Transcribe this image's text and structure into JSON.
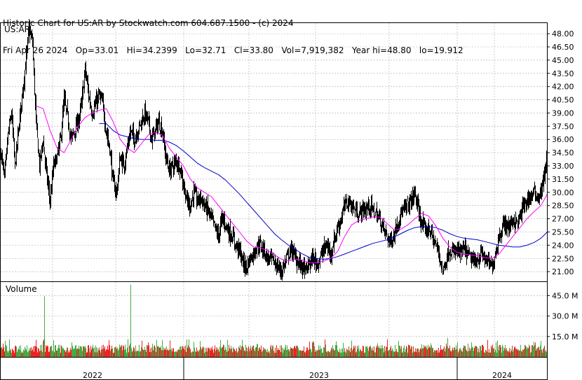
{
  "header": {
    "line1": "Historic Chart for US:AR by Stockwatch.com 604.687.1500 - (c) 2024",
    "line2": "Fri Apr 26 2024   Op=33.01   Hi=34.2399   Lo=32.71   Cl=33.80   Vol=7,919,382   Year hi=48.80   lo=19.912"
  },
  "chart_data": [
    {
      "type": "line",
      "panel": "price",
      "title": "US:AR",
      "y_ticks": [
        "48.00",
        "46.50",
        "45.00",
        "43.50",
        "42.00",
        "40.50",
        "39.00",
        "37.50",
        "36.00",
        "34.50",
        "33.00",
        "31.50",
        "30.00",
        "28.50",
        "27.00",
        "25.50",
        "24.00",
        "22.50",
        "21.00"
      ],
      "ylim": [
        19.9,
        49.2
      ],
      "x_labels": [
        "2022",
        "2023",
        "2024"
      ],
      "series": [
        {
          "style": "ohlc-bars",
          "color": "#000000"
        },
        {
          "style": "moving-average-short",
          "color": "#ff00ff"
        },
        {
          "style": "moving-average-long",
          "color": "#0000cc"
        }
      ],
      "price_keypoints": [
        [
          0,
          34.5
        ],
        [
          5,
          31.5
        ],
        [
          10,
          36.5
        ],
        [
          15,
          39
        ],
        [
          20,
          33
        ],
        [
          25,
          37
        ],
        [
          30,
          41
        ],
        [
          35,
          44.5
        ],
        [
          40,
          48.5
        ],
        [
          45,
          47
        ],
        [
          50,
          38
        ],
        [
          55,
          33
        ],
        [
          60,
          36
        ],
        [
          65,
          32
        ],
        [
          70,
          29
        ],
        [
          75,
          33
        ],
        [
          80,
          34
        ],
        [
          85,
          36
        ],
        [
          90,
          40.5
        ],
        [
          95,
          38.5
        ],
        [
          100,
          36
        ],
        [
          105,
          37
        ],
        [
          110,
          38
        ],
        [
          115,
          40
        ],
        [
          120,
          44
        ],
        [
          125,
          41
        ],
        [
          130,
          39
        ],
        [
          135,
          40
        ],
        [
          140,
          41
        ],
        [
          145,
          40
        ],
        [
          150,
          37
        ],
        [
          155,
          35
        ],
        [
          160,
          31
        ],
        [
          165,
          30
        ],
        [
          170,
          34
        ],
        [
          175,
          33
        ],
        [
          180,
          35
        ],
        [
          185,
          37
        ],
        [
          190,
          36
        ],
        [
          195,
          37
        ],
        [
          200,
          38
        ],
        [
          205,
          39
        ],
        [
          210,
          38
        ],
        [
          215,
          36
        ],
        [
          220,
          37
        ],
        [
          225,
          38
        ],
        [
          230,
          37
        ],
        [
          235,
          34
        ],
        [
          240,
          32.5
        ],
        [
          245,
          33
        ],
        [
          250,
          33.5
        ],
        [
          255,
          33
        ],
        [
          260,
          31
        ],
        [
          265,
          29
        ],
        [
          270,
          28.5
        ],
        [
          275,
          30
        ],
        [
          280,
          29
        ],
        [
          285,
          29.5
        ],
        [
          290,
          28.5
        ],
        [
          295,
          28
        ],
        [
          300,
          27
        ],
        [
          305,
          26
        ],
        [
          310,
          25
        ],
        [
          315,
          27
        ],
        [
          320,
          26.5
        ],
        [
          325,
          25.5
        ],
        [
          330,
          25
        ],
        [
          335,
          24
        ],
        [
          340,
          23.5
        ],
        [
          345,
          22
        ],
        [
          350,
          21.5
        ],
        [
          355,
          22.5
        ],
        [
          360,
          23
        ],
        [
          365,
          24
        ],
        [
          370,
          24
        ],
        [
          375,
          23.5
        ],
        [
          380,
          22.5
        ],
        [
          385,
          22.5
        ],
        [
          390,
          22
        ],
        [
          395,
          21.5
        ],
        [
          400,
          21
        ],
        [
          405,
          22
        ],
        [
          410,
          23
        ],
        [
          415,
          23.5
        ],
        [
          420,
          22.5
        ],
        [
          425,
          22
        ],
        [
          430,
          21.5
        ],
        [
          435,
          21
        ],
        [
          440,
          22
        ],
        [
          445,
          22.5
        ],
        [
          450,
          22
        ],
        [
          455,
          22.5
        ],
        [
          460,
          23.5
        ],
        [
          465,
          24
        ],
        [
          470,
          23
        ],
        [
          475,
          24.5
        ],
        [
          480,
          26
        ],
        [
          485,
          27
        ],
        [
          490,
          28.5
        ],
        [
          495,
          29
        ],
        [
          500,
          28.5
        ],
        [
          505,
          28
        ],
        [
          510,
          27.5
        ],
        [
          515,
          28
        ],
        [
          520,
          28
        ],
        [
          525,
          28.5
        ],
        [
          530,
          28
        ],
        [
          535,
          27.5
        ],
        [
          540,
          27
        ],
        [
          545,
          26
        ],
        [
          550,
          25
        ],
        [
          555,
          24.5
        ],
        [
          560,
          25
        ],
        [
          565,
          26.5
        ],
        [
          570,
          27.5
        ],
        [
          575,
          28
        ],
        [
          580,
          28.5
        ],
        [
          585,
          29
        ],
        [
          590,
          30
        ],
        [
          595,
          28
        ],
        [
          600,
          26.5
        ],
        [
          605,
          25.5
        ],
        [
          610,
          26
        ],
        [
          615,
          25
        ],
        [
          620,
          24
        ],
        [
          625,
          23
        ],
        [
          630,
          21
        ],
        [
          635,
          22.5
        ],
        [
          640,
          23.5
        ],
        [
          645,
          23
        ],
        [
          650,
          23.5
        ],
        [
          655,
          23
        ],
        [
          660,
          23.5
        ],
        [
          665,
          23
        ],
        [
          670,
          22.5
        ],
        [
          675,
          22
        ],
        [
          680,
          22.5
        ],
        [
          685,
          23
        ],
        [
          690,
          22.5
        ],
        [
          695,
          22
        ],
        [
          700,
          21.5
        ],
        [
          705,
          23
        ],
        [
          710,
          25
        ],
        [
          715,
          26
        ],
        [
          720,
          26.5
        ],
        [
          725,
          26
        ],
        [
          730,
          27
        ],
        [
          735,
          26.5
        ],
        [
          740,
          27
        ],
        [
          745,
          28.5
        ],
        [
          750,
          29
        ],
        [
          755,
          29.5
        ],
        [
          760,
          30
        ],
        [
          765,
          29.5
        ],
        [
          770,
          30
        ],
        [
          775,
          32
        ],
        [
          779,
          34
        ]
      ],
      "ma_short_keypoints": [
        [
          50,
          39.8
        ],
        [
          60,
          39.5
        ],
        [
          70,
          37
        ],
        [
          80,
          35
        ],
        [
          90,
          34.5
        ],
        [
          100,
          36
        ],
        [
          110,
          37.5
        ],
        [
          120,
          38.5
        ],
        [
          130,
          39
        ],
        [
          140,
          39.3
        ],
        [
          150,
          39.5
        ],
        [
          160,
          38
        ],
        [
          170,
          36
        ],
        [
          180,
          35
        ],
        [
          190,
          34.5
        ],
        [
          200,
          35.5
        ],
        [
          210,
          36.5
        ],
        [
          220,
          36.8
        ],
        [
          230,
          36.5
        ],
        [
          240,
          35
        ],
        [
          250,
          34
        ],
        [
          260,
          33
        ],
        [
          270,
          31.5
        ],
        [
          280,
          30.5
        ],
        [
          290,
          30
        ],
        [
          300,
          29.5
        ],
        [
          310,
          28.5
        ],
        [
          320,
          27.5
        ],
        [
          330,
          26.5
        ],
        [
          340,
          25.5
        ],
        [
          350,
          24.5
        ],
        [
          360,
          23.8
        ],
        [
          370,
          23.7
        ],
        [
          380,
          23.4
        ],
        [
          390,
          22.9
        ],
        [
          400,
          22.4
        ],
        [
          410,
          22.2
        ],
        [
          420,
          22.4
        ],
        [
          430,
          22.3
        ],
        [
          440,
          22
        ],
        [
          450,
          22
        ],
        [
          460,
          22.2
        ],
        [
          470,
          22.5
        ],
        [
          480,
          23.3
        ],
        [
          490,
          25
        ],
        [
          500,
          26.3
        ],
        [
          510,
          26.8
        ],
        [
          520,
          27
        ],
        [
          530,
          27.2
        ],
        [
          540,
          27.2
        ],
        [
          550,
          26.5
        ],
        [
          560,
          25.8
        ],
        [
          570,
          25.8
        ],
        [
          580,
          26.3
        ],
        [
          590,
          27
        ],
        [
          600,
          27.6
        ],
        [
          610,
          27.3
        ],
        [
          620,
          26.2
        ],
        [
          630,
          24.8
        ],
        [
          640,
          23.8
        ],
        [
          650,
          23.2
        ],
        [
          660,
          23
        ],
        [
          670,
          22.9
        ],
        [
          680,
          22.8
        ],
        [
          690,
          22.6
        ],
        [
          700,
          22.5
        ],
        [
          710,
          23
        ],
        [
          720,
          24
        ],
        [
          730,
          25
        ],
        [
          740,
          26
        ],
        [
          750,
          27
        ],
        [
          760,
          27.8
        ],
        [
          770,
          28.5
        ],
        [
          779,
          29.8
        ]
      ],
      "ma_long_keypoints": [
        [
          140,
          37.8
        ],
        [
          150,
          37.8
        ],
        [
          160,
          37
        ],
        [
          170,
          36.5
        ],
        [
          180,
          36.3
        ],
        [
          190,
          36.1
        ],
        [
          200,
          36
        ],
        [
          210,
          36
        ],
        [
          220,
          35.9
        ],
        [
          230,
          35.9
        ],
        [
          240,
          35.7
        ],
        [
          250,
          35.3
        ],
        [
          260,
          34.7
        ],
        [
          270,
          34
        ],
        [
          280,
          33.3
        ],
        [
          290,
          32.8
        ],
        [
          300,
          32.4
        ],
        [
          310,
          32
        ],
        [
          320,
          31.4
        ],
        [
          330,
          30.6
        ],
        [
          340,
          29.8
        ],
        [
          350,
          28.9
        ],
        [
          360,
          28
        ],
        [
          370,
          27.1
        ],
        [
          380,
          26.2
        ],
        [
          390,
          25.3
        ],
        [
          400,
          24.6
        ],
        [
          410,
          24
        ],
        [
          420,
          23.5
        ],
        [
          430,
          23
        ],
        [
          440,
          22.6
        ],
        [
          450,
          22.5
        ],
        [
          460,
          22.4
        ],
        [
          470,
          22.5
        ],
        [
          480,
          22.7
        ],
        [
          490,
          23
        ],
        [
          500,
          23.3
        ],
        [
          510,
          23.6
        ],
        [
          520,
          23.9
        ],
        [
          530,
          24.2
        ],
        [
          540,
          24.4
        ],
        [
          550,
          24.6
        ],
        [
          560,
          24.9
        ],
        [
          570,
          25.3
        ],
        [
          580,
          25.7
        ],
        [
          590,
          26
        ],
        [
          600,
          26.1
        ],
        [
          610,
          26.1
        ],
        [
          620,
          26
        ],
        [
          630,
          25.7
        ],
        [
          640,
          25.3
        ],
        [
          650,
          25
        ],
        [
          660,
          24.8
        ],
        [
          670,
          24.7
        ],
        [
          680,
          24.6
        ],
        [
          690,
          24.4
        ],
        [
          700,
          24.2
        ],
        [
          710,
          24
        ],
        [
          720,
          23.9
        ],
        [
          730,
          23.8
        ],
        [
          740,
          23.8
        ],
        [
          750,
          24
        ],
        [
          760,
          24.3
        ],
        [
          770,
          24.8
        ],
        [
          779,
          25.5
        ]
      ]
    },
    {
      "type": "bar",
      "panel": "volume",
      "title": "Volume",
      "y_ticks": [
        "45.0 M",
        "30.0 M",
        "15.0 M"
      ],
      "ylim": [
        0,
        55
      ],
      "series": [
        {
          "style": "up-volume",
          "color": "#44aa44"
        },
        {
          "style": "down-volume",
          "color": "#ee2222"
        }
      ],
      "spikes": [
        [
          62,
          44.5
        ],
        [
          185,
          53
        ],
        [
          181,
          13
        ],
        [
          500,
          12
        ],
        [
          637,
          14
        ],
        [
          708,
          12
        ]
      ]
    }
  ],
  "colors": {
    "grid": "#aaaaaa",
    "border": "#000000",
    "background": "#ffffff"
  }
}
